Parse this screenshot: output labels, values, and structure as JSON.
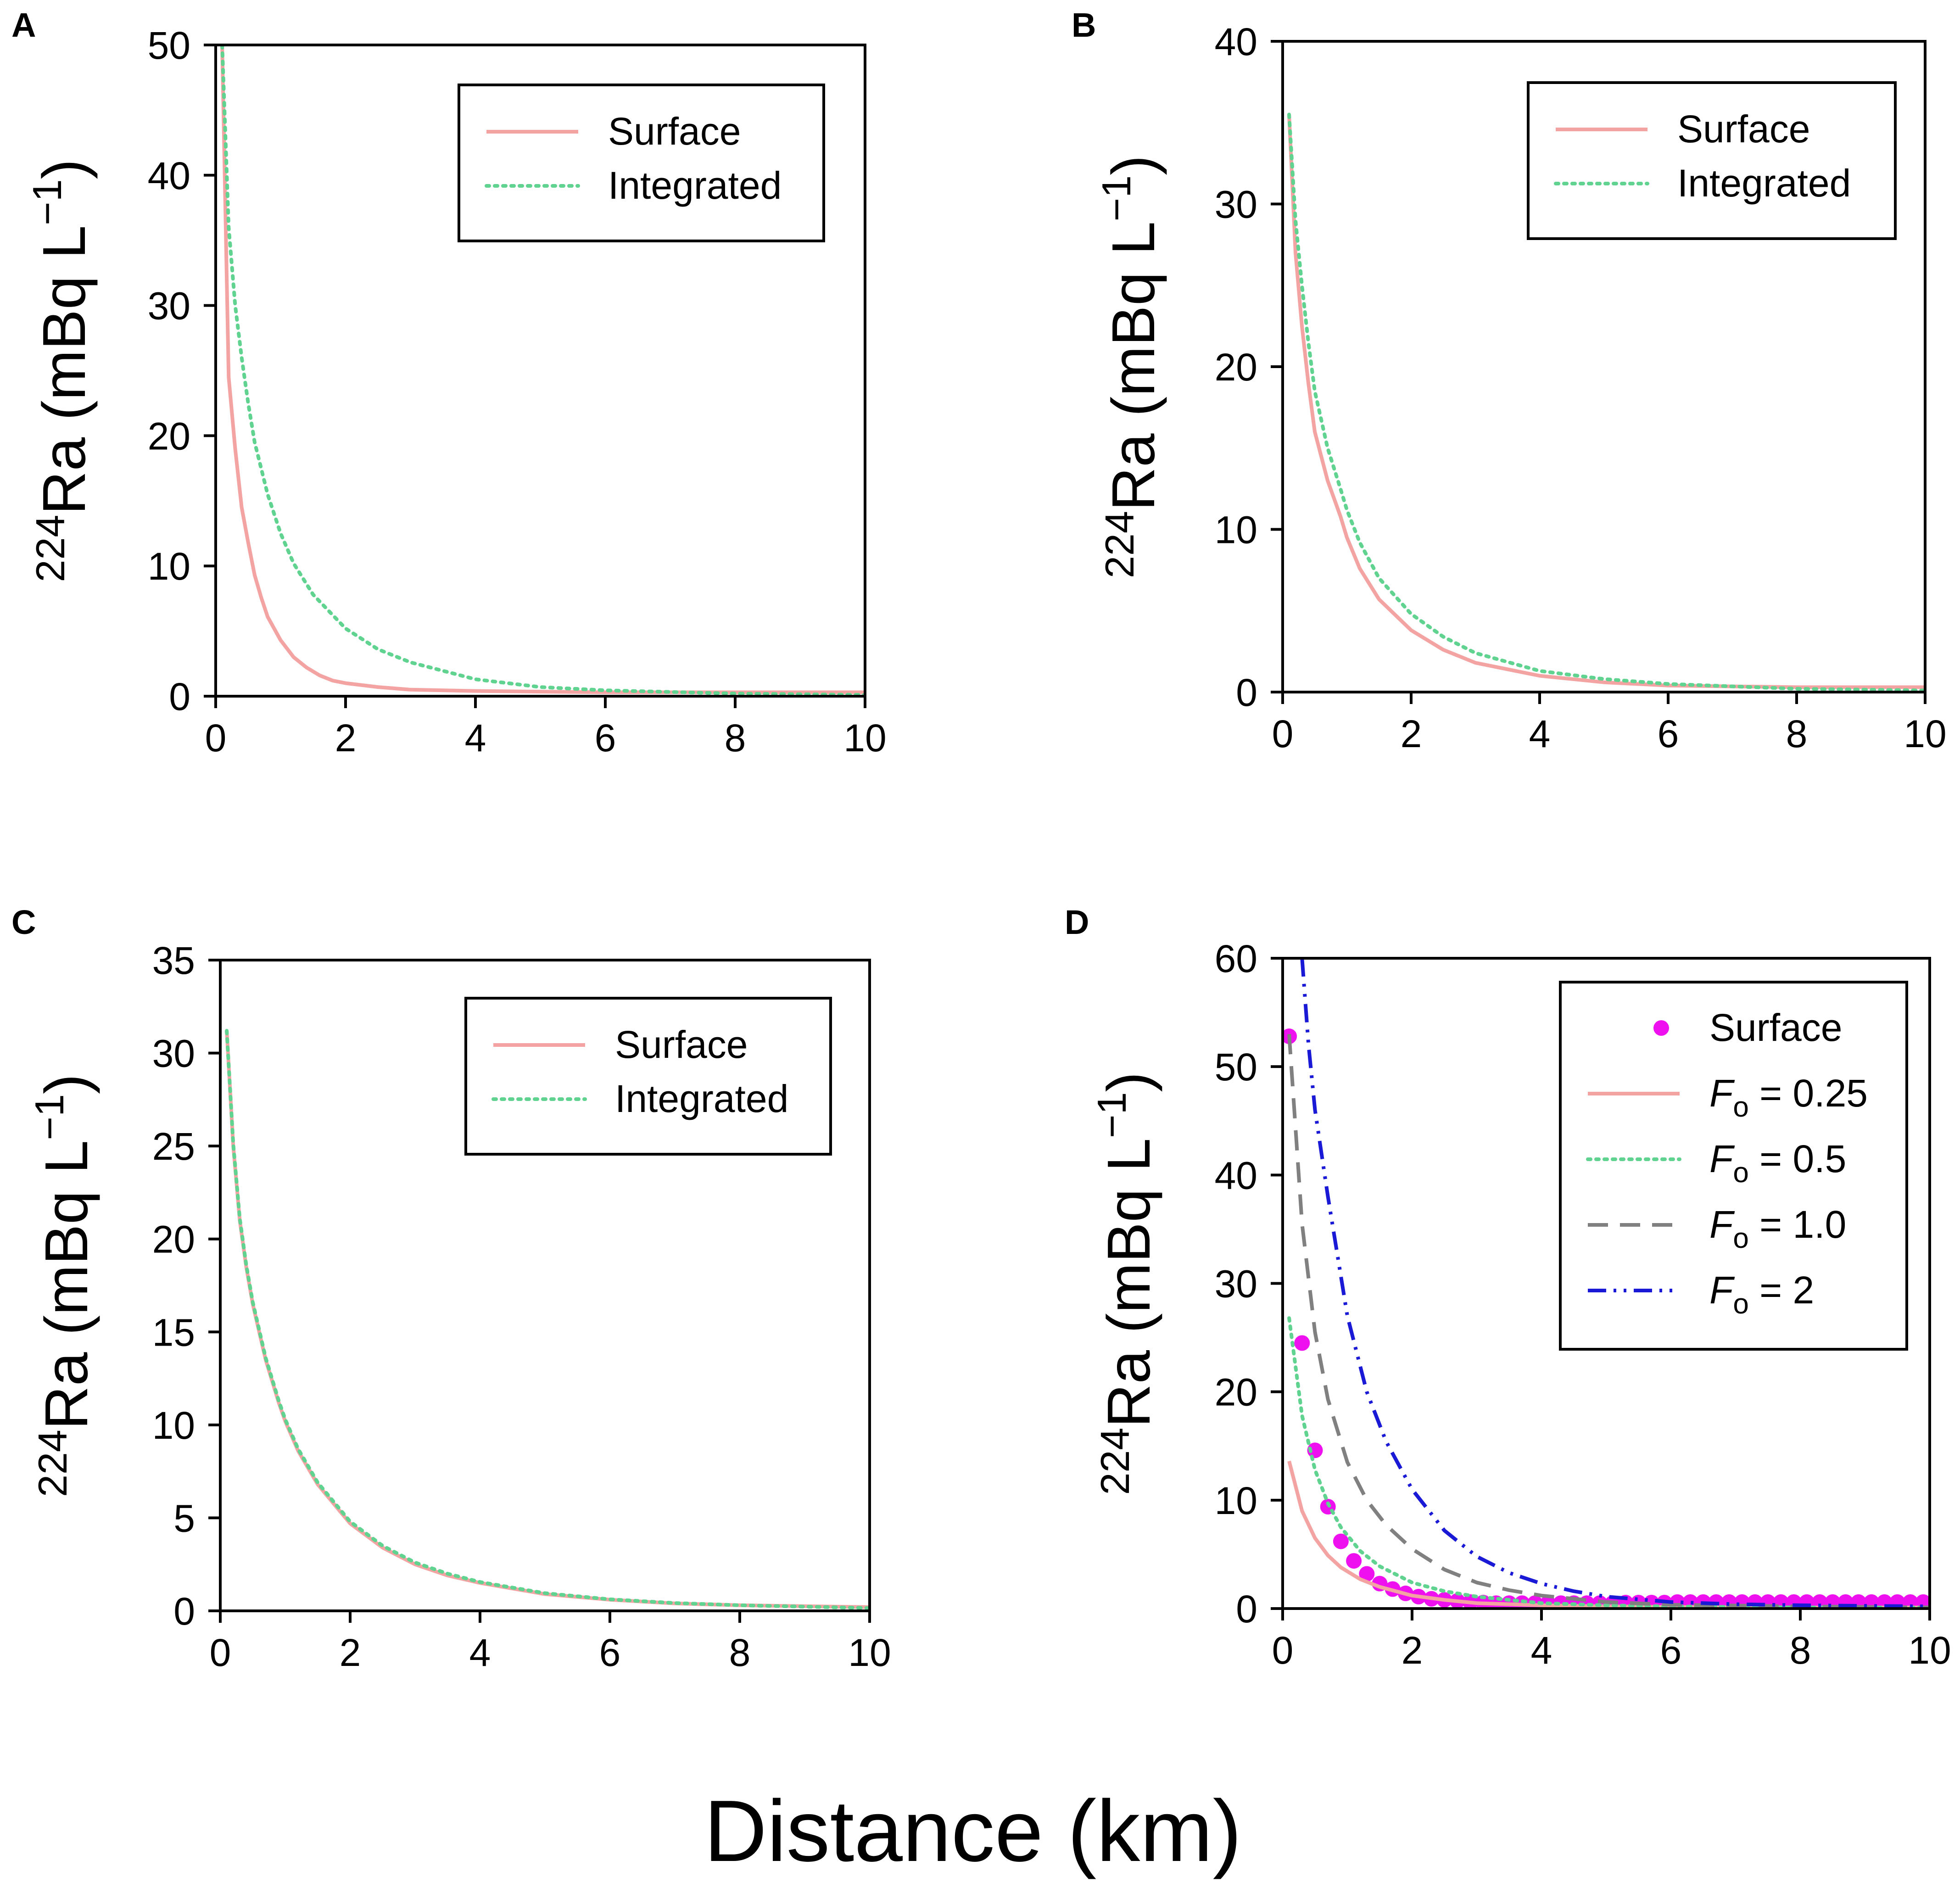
{
  "figure": {
    "xlabel": "Distance (km)"
  },
  "colors": {
    "surface_line": "#f4a3a3",
    "integrated_line": "#5fd38f",
    "surface_points": "#ee10ee",
    "f1_line": "#808080",
    "f2_line": "#1a1ad6",
    "axis": "#000000"
  },
  "chart_data": [
    {
      "panel": "A",
      "type": "line",
      "title": "",
      "xlabel": "Distance (km)",
      "ylabel_sup": "224",
      "ylabel_main": "Ra (mBq L",
      "ylabel_exp": "−1",
      "ylabel_close": ")",
      "xlim": [
        0,
        10
      ],
      "ylim": [
        0,
        50
      ],
      "xticks": [
        0,
        2,
        4,
        6,
        8,
        10
      ],
      "yticks": [
        0,
        10,
        20,
        30,
        40,
        50
      ],
      "legend": {
        "position": "top-right",
        "entries": [
          "Surface",
          "Integrated"
        ]
      },
      "series": [
        {
          "name": "Surface",
          "style": "solid",
          "color": "surface_line",
          "x": [
            0.1,
            0.2,
            0.3,
            0.4,
            0.5,
            0.6,
            0.7,
            0.8,
            1.0,
            1.2,
            1.4,
            1.6,
            1.8,
            2.0,
            2.5,
            3.0,
            4.0,
            5.0,
            6.0,
            8.0,
            10.0
          ],
          "y": [
            50.0,
            24.5,
            19.0,
            14.5,
            11.8,
            9.3,
            7.6,
            6.1,
            4.3,
            3.0,
            2.2,
            1.6,
            1.2,
            1.0,
            0.7,
            0.5,
            0.4,
            0.35,
            0.3,
            0.3,
            0.3
          ]
        },
        {
          "name": "Integrated",
          "style": "dotted",
          "color": "integrated_line",
          "x": [
            0.1,
            0.2,
            0.3,
            0.4,
            0.5,
            0.6,
            0.8,
            1.0,
            1.2,
            1.5,
            2.0,
            2.5,
            3.0,
            4.0,
            5.0,
            6.0,
            8.0,
            10.0
          ],
          "y": [
            50.0,
            36.0,
            30.0,
            26.0,
            22.5,
            19.5,
            15.5,
            12.5,
            10.2,
            7.8,
            5.2,
            3.6,
            2.6,
            1.3,
            0.7,
            0.45,
            0.2,
            0.1
          ]
        }
      ]
    },
    {
      "panel": "B",
      "type": "line",
      "title": "",
      "xlabel": "Distance (km)",
      "ylabel_sup": "224",
      "ylabel_main": "Ra (mBq L",
      "ylabel_exp": "−1",
      "ylabel_close": ")",
      "xlim": [
        0,
        10
      ],
      "ylim": [
        0,
        40
      ],
      "xticks": [
        0,
        2,
        4,
        6,
        8,
        10
      ],
      "yticks": [
        0,
        10,
        20,
        30,
        40
      ],
      "legend": {
        "position": "top-right",
        "entries": [
          "Surface",
          "Integrated"
        ]
      },
      "series": [
        {
          "name": "Surface",
          "style": "solid",
          "color": "surface_line",
          "x": [
            0.1,
            0.2,
            0.3,
            0.4,
            0.5,
            0.7,
            0.9,
            1.0,
            1.2,
            1.5,
            2.0,
            2.5,
            3.0,
            4.0,
            5.0,
            6.0,
            8.0,
            10.0
          ],
          "y": [
            35.5,
            27.0,
            22.5,
            19.0,
            16.0,
            13.0,
            10.8,
            9.5,
            7.6,
            5.7,
            3.8,
            2.6,
            1.8,
            1.0,
            0.6,
            0.4,
            0.3,
            0.3
          ]
        },
        {
          "name": "Integrated",
          "style": "dotted",
          "color": "integrated_line",
          "x": [
            0.1,
            0.2,
            0.3,
            0.4,
            0.5,
            0.7,
            0.9,
            1.0,
            1.2,
            1.5,
            2.0,
            2.5,
            3.0,
            4.0,
            5.0,
            6.0,
            8.0,
            10.0
          ],
          "y": [
            35.5,
            29.0,
            25.0,
            21.5,
            18.5,
            15.0,
            12.5,
            11.2,
            9.2,
            7.0,
            4.8,
            3.4,
            2.4,
            1.3,
            0.8,
            0.5,
            0.2,
            0.1
          ]
        }
      ]
    },
    {
      "panel": "C",
      "type": "line",
      "title": "",
      "xlabel": "Distance (km)",
      "ylabel_sup": "224",
      "ylabel_main": "Ra (mBq L",
      "ylabel_exp": "−1",
      "ylabel_close": ")",
      "xlim": [
        0,
        10
      ],
      "ylim": [
        0,
        35
      ],
      "xticks": [
        0,
        2,
        4,
        6,
        8,
        10
      ],
      "yticks": [
        0,
        5,
        10,
        15,
        20,
        25,
        30,
        35
      ],
      "legend": {
        "position": "top-right",
        "entries": [
          "Surface",
          "Integrated"
        ]
      },
      "series": [
        {
          "name": "Surface",
          "style": "solid",
          "color": "surface_line",
          "x": [
            0.1,
            0.2,
            0.3,
            0.4,
            0.5,
            0.7,
            0.9,
            1.0,
            1.2,
            1.5,
            2.0,
            2.5,
            3.0,
            3.5,
            4.0,
            5.0,
            6.0,
            7.0,
            8.0,
            10.0
          ],
          "y": [
            31.2,
            25.0,
            21.0,
            18.5,
            16.5,
            13.5,
            11.2,
            10.2,
            8.6,
            6.8,
            4.7,
            3.4,
            2.5,
            1.9,
            1.5,
            0.9,
            0.6,
            0.4,
            0.3,
            0.2
          ]
        },
        {
          "name": "Integrated",
          "style": "dotted",
          "color": "integrated_line",
          "x": [
            0.1,
            0.2,
            0.3,
            0.4,
            0.5,
            0.7,
            0.9,
            1.0,
            1.2,
            1.5,
            2.0,
            2.5,
            3.0,
            3.5,
            4.0,
            5.0,
            6.0,
            7.0,
            8.0,
            10.0
          ],
          "y": [
            31.2,
            25.1,
            21.1,
            18.6,
            16.6,
            13.6,
            11.3,
            10.3,
            8.7,
            6.9,
            4.8,
            3.5,
            2.6,
            2.0,
            1.55,
            0.95,
            0.62,
            0.42,
            0.3,
            0.15
          ]
        }
      ]
    },
    {
      "panel": "D",
      "type": "line",
      "title": "",
      "xlabel": "Distance (km)",
      "ylabel_sup": "224",
      "ylabel_main": "Ra (mBq L",
      "ylabel_exp": "−1",
      "ylabel_close": ")",
      "xlim": [
        0,
        10
      ],
      "ylim": [
        0,
        60
      ],
      "xticks": [
        0,
        2,
        4,
        6,
        8,
        10
      ],
      "yticks": [
        0,
        10,
        20,
        30,
        40,
        50,
        60
      ],
      "legend": {
        "position": "top-right",
        "entries": [
          {
            "label": "Surface",
            "var": "",
            "sub": "",
            "rest": ""
          },
          {
            "label": "",
            "var": "F",
            "sub": "o",
            "rest": " = 0.25"
          },
          {
            "label": "",
            "var": "F",
            "sub": "o",
            "rest": " = 0.5"
          },
          {
            "label": "",
            "var": "F",
            "sub": "o",
            "rest": " = 1.0"
          },
          {
            "label": "",
            "var": "F",
            "sub": "o",
            "rest": " = 2"
          }
        ]
      },
      "series": [
        {
          "name": "Surface",
          "style": "points",
          "color": "surface_points",
          "x": [
            0.1,
            0.3,
            0.5,
            0.7,
            0.9,
            1.1,
            1.3,
            1.5,
            1.7,
            1.9,
            2.1,
            2.3,
            2.5,
            2.7,
            2.9,
            3.1,
            3.3,
            3.5,
            3.7,
            3.9,
            4.1,
            4.3,
            4.5,
            4.7,
            4.9,
            5.1,
            5.3,
            5.5,
            5.7,
            5.9,
            6.1,
            6.3,
            6.5,
            6.7,
            6.9,
            7.1,
            7.3,
            7.5,
            7.7,
            7.9,
            8.1,
            8.3,
            8.5,
            8.7,
            8.9,
            9.1,
            9.3,
            9.5,
            9.7,
            9.9
          ],
          "y": [
            52.8,
            24.5,
            14.6,
            9.4,
            6.2,
            4.4,
            3.2,
            2.3,
            1.8,
            1.4,
            1.1,
            0.9,
            0.8,
            0.7,
            0.6,
            0.55,
            0.5,
            0.5,
            0.5,
            0.5,
            0.5,
            0.5,
            0.5,
            0.5,
            0.5,
            0.5,
            0.55,
            0.55,
            0.55,
            0.55,
            0.6,
            0.6,
            0.6,
            0.6,
            0.6,
            0.6,
            0.6,
            0.6,
            0.6,
            0.6,
            0.6,
            0.6,
            0.6,
            0.6,
            0.6,
            0.6,
            0.6,
            0.6,
            0.6,
            0.6
          ]
        },
        {
          "name": "Fo = 0.25",
          "style": "solid",
          "color": "surface_line",
          "x": [
            0.1,
            0.3,
            0.5,
            0.7,
            0.9,
            1.2,
            1.5,
            2.0,
            2.5,
            3.0,
            4.0,
            5.0,
            6.0,
            8.0,
            10.0
          ],
          "y": [
            13.6,
            9.0,
            6.5,
            4.9,
            3.8,
            2.7,
            2.0,
            1.2,
            0.8,
            0.5,
            0.3,
            0.2,
            0.15,
            0.1,
            0.1
          ]
        },
        {
          "name": "Fo = 0.5",
          "style": "dotted",
          "color": "integrated_line",
          "x": [
            0.1,
            0.3,
            0.5,
            0.7,
            0.9,
            1.2,
            1.5,
            2.0,
            2.5,
            3.0,
            4.0,
            5.0,
            6.0,
            8.0,
            10.0
          ],
          "y": [
            26.8,
            17.8,
            12.8,
            9.7,
            7.5,
            5.3,
            3.9,
            2.4,
            1.6,
            1.1,
            0.5,
            0.3,
            0.2,
            0.1,
            0.1
          ]
        },
        {
          "name": "Fo = 1.0",
          "style": "dashed",
          "color": "f1_line",
          "x": [
            0.1,
            0.3,
            0.5,
            0.7,
            1.0,
            1.3,
            1.6,
            2.0,
            2.5,
            3.0,
            3.5,
            4.0,
            5.0,
            6.0,
            8.0,
            10.0
          ],
          "y": [
            53.0,
            35.5,
            25.5,
            19.3,
            13.5,
            10.0,
            7.7,
            5.5,
            3.6,
            2.4,
            1.7,
            1.2,
            0.6,
            0.35,
            0.2,
            0.1
          ]
        },
        {
          "name": "Fo = 2",
          "style": "dashdotdot",
          "color": "f2_line",
          "x": [
            0.3,
            0.4,
            0.5,
            0.7,
            1.0,
            1.3,
            1.6,
            2.0,
            2.5,
            3.0,
            3.5,
            4.0,
            4.5,
            5.0,
            6.0,
            7.0,
            8.0,
            10.0
          ],
          "y": [
            60.0,
            52.0,
            46.0,
            38.0,
            27.0,
            20.0,
            15.4,
            11.0,
            7.2,
            4.8,
            3.3,
            2.3,
            1.6,
            1.1,
            0.6,
            0.4,
            0.3,
            0.2
          ]
        }
      ]
    }
  ]
}
